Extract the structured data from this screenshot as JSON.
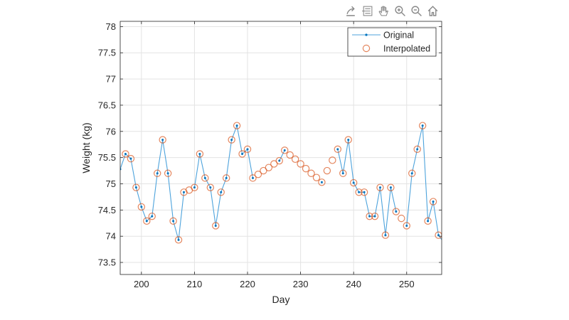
{
  "toolbar": {
    "icons": [
      "export-icon",
      "brush-icon",
      "pan-icon",
      "zoom-in-icon",
      "zoom-out-icon",
      "home-icon"
    ]
  },
  "chart_data": {
    "type": "line",
    "title": "",
    "xlabel": "Day",
    "ylabel": "Weight (kg)",
    "xlim": [
      196,
      256.6
    ],
    "ylim": [
      73.27,
      78.1
    ],
    "xticks": [
      200,
      210,
      220,
      230,
      240,
      250
    ],
    "yticks": [
      73.5,
      74,
      74.5,
      75,
      75.5,
      76,
      76.5,
      77,
      77.5,
      78
    ],
    "ytick_labels": [
      "73.5",
      "74",
      "74.5",
      "75",
      "75.5",
      "76",
      "76.5",
      "77",
      "77.5",
      "78"
    ],
    "grid": true,
    "legend": {
      "placement": "top-right",
      "entries": [
        "Original",
        "Interpolated"
      ]
    },
    "colors": {
      "original": "#0072BD",
      "original_line": "#4DA3DC",
      "interpolated": "#D95319"
    },
    "x": [
      196,
      197,
      198,
      199,
      200,
      201,
      202,
      203,
      204,
      205,
      206,
      207,
      208,
      209,
      210,
      211,
      212,
      213,
      214,
      215,
      216,
      217,
      218,
      219,
      220,
      221,
      222,
      223,
      224,
      225,
      226,
      227,
      228,
      229,
      230,
      231,
      232,
      233,
      234,
      235,
      236,
      237,
      238,
      239,
      240,
      241,
      242,
      243,
      244,
      245,
      246,
      247,
      248,
      249,
      250,
      251,
      252,
      253,
      254,
      255,
      256,
      257
    ],
    "series": [
      {
        "name": "Original",
        "values": [
          75.28,
          75.57,
          75.48,
          74.93,
          74.56,
          74.29,
          74.38,
          75.2,
          75.84,
          75.2,
          74.29,
          73.93,
          74.84,
          null,
          74.93,
          75.57,
          75.11,
          74.93,
          74.2,
          74.84,
          75.11,
          75.84,
          76.11,
          75.57,
          75.66,
          75.11,
          null,
          null,
          null,
          null,
          75.44,
          75.64,
          null,
          null,
          null,
          null,
          null,
          null,
          75.03,
          null,
          null,
          75.66,
          75.2,
          75.84,
          75.02,
          74.84,
          74.84,
          74.38,
          74.38,
          74.93,
          74.02,
          74.93,
          74.47,
          null,
          74.2,
          75.2,
          75.66,
          76.11,
          74.29,
          74.66,
          74.02,
          73.88
        ]
      },
      {
        "name": "Interpolated",
        "values": [
          null,
          75.57,
          75.48,
          74.93,
          74.56,
          74.29,
          74.38,
          75.2,
          75.84,
          75.2,
          74.29,
          73.93,
          74.84,
          74.88,
          74.93,
          75.57,
          75.11,
          74.93,
          74.2,
          74.84,
          75.11,
          75.84,
          76.11,
          75.57,
          75.66,
          75.11,
          75.18,
          75.25,
          75.31,
          75.38,
          75.44,
          75.64,
          75.55,
          75.47,
          75.38,
          75.29,
          75.2,
          75.12,
          75.03,
          75.25,
          75.45,
          75.66,
          75.2,
          75.84,
          75.02,
          74.84,
          74.84,
          74.38,
          74.38,
          74.93,
          74.02,
          74.93,
          74.47,
          74.34,
          74.2,
          75.2,
          75.66,
          76.11,
          74.29,
          74.66,
          74.02,
          null
        ]
      }
    ]
  }
}
